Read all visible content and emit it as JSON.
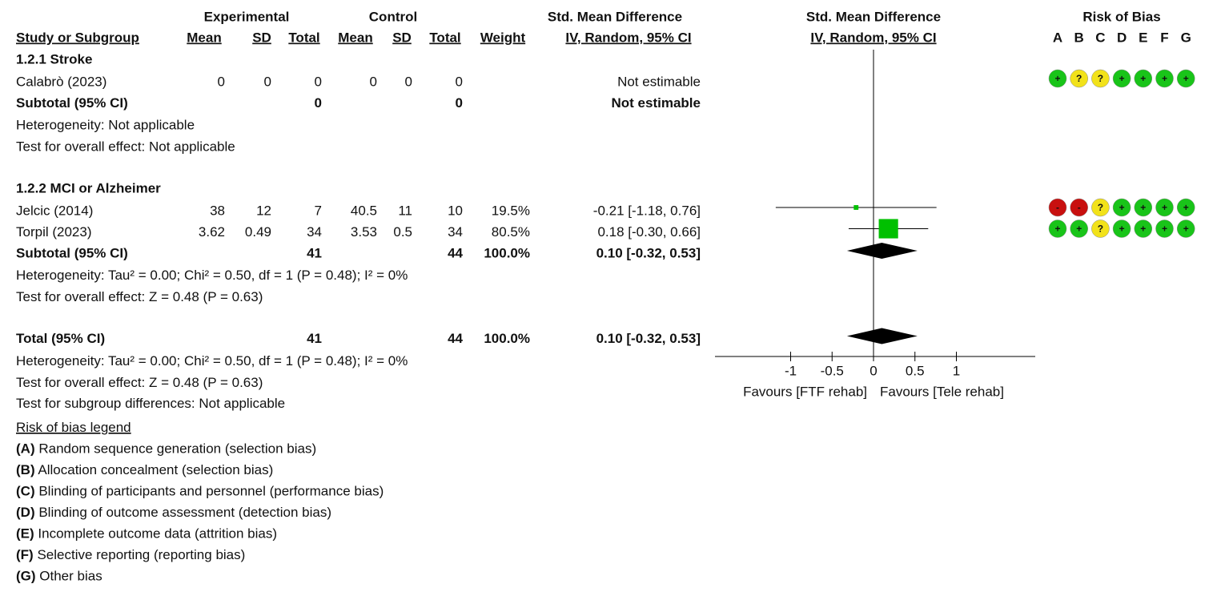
{
  "chart_data": {
    "type": "forest",
    "group_headers": {
      "experimental": "Experimental",
      "control": "Control",
      "effect": "Std. Mean Difference",
      "plot": "Std. Mean Difference",
      "bias": "Risk of Bias"
    },
    "column_headers": {
      "study": "Study or Subgroup",
      "exp_mean": "Mean",
      "exp_sd": "SD",
      "exp_total": "Total",
      "ctrl_mean": "Mean",
      "ctrl_sd": "SD",
      "ctrl_total": "Total",
      "weight": "Weight",
      "effect": "IV, Random, 95% CI",
      "plot": "IV, Random, 95% CI"
    },
    "bias_domains": [
      "A",
      "B",
      "C",
      "D",
      "E",
      "F",
      "G"
    ],
    "bias_colors": {
      "+": "#19c419",
      "?": "#f2e21a",
      "-": "#c8100f"
    },
    "subgroups": [
      {
        "title": "1.2.1 Stroke",
        "studies": [
          {
            "name": "Calabrò (2023)",
            "exp_mean": 0,
            "exp_sd": 0,
            "exp_total": 0,
            "ctrl_mean": 0,
            "ctrl_sd": 0,
            "ctrl_total": 0,
            "effect_label": "Not estimable",
            "bias": [
              "+",
              "?",
              "?",
              "+",
              "+",
              "+",
              "+"
            ]
          }
        ],
        "subtotal": {
          "label": "Subtotal (95% CI)",
          "exp_total": 0,
          "ctrl_total": 0,
          "effect_label": "Not estimable"
        },
        "heterogeneity": "Heterogeneity: Not applicable",
        "overall_effect": "Test for overall effect: Not applicable"
      },
      {
        "title": "1.2.2 MCI or Alzheimer",
        "studies": [
          {
            "name": "Jelcic (2014)",
            "exp_mean": 38,
            "exp_sd": 12,
            "exp_total": 7,
            "ctrl_mean": 40.5,
            "ctrl_sd": 11,
            "ctrl_total": 10,
            "weight": 19.5,
            "weight_label": "19.5%",
            "smd": -0.21,
            "ci": [
              -1.18,
              0.76
            ],
            "effect_label": "-0.21 [-1.18, 0.76]",
            "bias": [
              "-",
              "-",
              "?",
              "+",
              "+",
              "+",
              "+"
            ]
          },
          {
            "name": "Torpil (2023)",
            "exp_mean": 3.62,
            "exp_sd": 0.49,
            "exp_total": 34,
            "ctrl_mean": 3.53,
            "ctrl_sd": 0.5,
            "ctrl_total": 34,
            "weight": 80.5,
            "weight_label": "80.5%",
            "smd": 0.18,
            "ci": [
              -0.3,
              0.66
            ],
            "effect_label": "0.18 [-0.30, 0.66]",
            "bias": [
              "+",
              "+",
              "?",
              "+",
              "+",
              "+",
              "+"
            ]
          }
        ],
        "subtotal": {
          "label": "Subtotal (95% CI)",
          "exp_total": 41,
          "ctrl_total": 44,
          "weight_label": "100.0%",
          "smd": 0.1,
          "ci": [
            -0.32,
            0.53
          ],
          "effect_label": "0.10 [-0.32, 0.53]"
        },
        "heterogeneity": "Heterogeneity: Tau² = 0.00; Chi² = 0.50, df = 1 (P = 0.48); I² = 0%",
        "overall_effect": "Test for overall effect: Z = 0.48 (P = 0.63)"
      }
    ],
    "total": {
      "label": "Total (95% CI)",
      "exp_total": 41,
      "ctrl_total": 44,
      "weight_label": "100.0%",
      "smd": 0.1,
      "ci": [
        -0.32,
        0.53
      ],
      "effect_label": "0.10 [-0.32, 0.53]",
      "heterogeneity": "Heterogeneity: Tau² = 0.00; Chi² = 0.50, df = 1 (P = 0.48); I² = 0%",
      "overall_effect": "Test for overall effect: Z = 0.48 (P = 0.63)",
      "subgroup_differences": "Test for subgroup differences: Not applicable"
    },
    "xlim": [
      -2,
      2
    ],
    "xticks": [
      -1,
      -0.5,
      0,
      0.5,
      1
    ],
    "favours_left": "Favours [FTF rehab]",
    "favours_right": "Favours [Tele rehab]",
    "marker_color": "#00c000",
    "legend": {
      "title": "Risk of bias legend",
      "items": [
        {
          "key": "(A)",
          "text": " Random sequence generation (selection bias)"
        },
        {
          "key": "(B)",
          "text": " Allocation concealment (selection bias)"
        },
        {
          "key": "(C)",
          "text": " Blinding of participants and personnel (performance bias)"
        },
        {
          "key": "(D)",
          "text": " Blinding of outcome assessment (detection bias)"
        },
        {
          "key": "(E)",
          "text": " Incomplete outcome data (attrition bias)"
        },
        {
          "key": "(F)",
          "text": " Selective reporting (reporting bias)"
        },
        {
          "key": "(G)",
          "text": " Other bias"
        }
      ]
    }
  }
}
